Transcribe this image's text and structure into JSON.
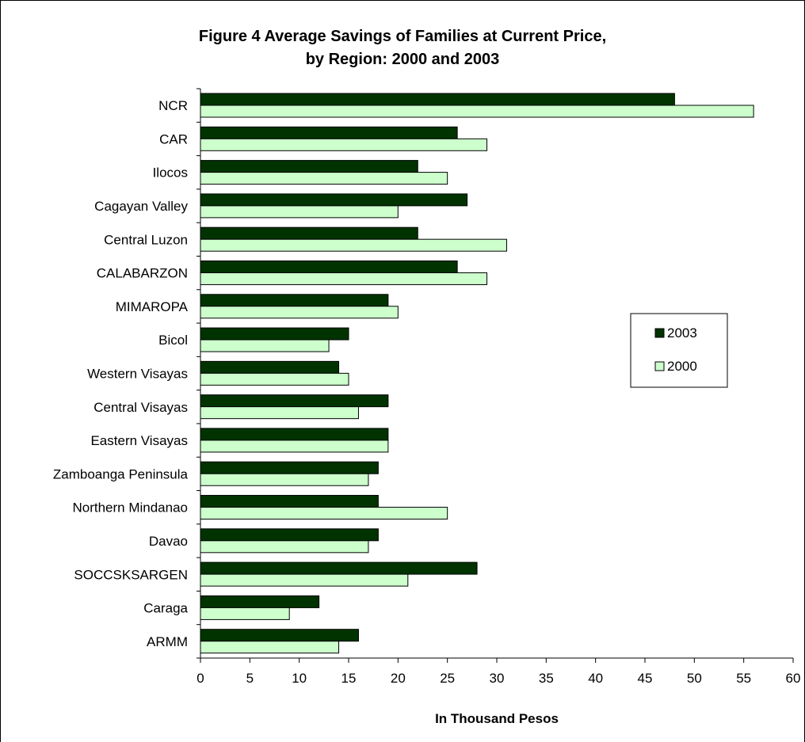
{
  "chart_data": {
    "type": "bar",
    "orientation": "horizontal",
    "title": "Figure 4  Average Savings of Families at Current Price,",
    "subtitle": "by Region:  2000 and 2003",
    "xlabel": "In Thousand Pesos",
    "ylabel": "",
    "xlim": [
      0,
      60
    ],
    "x_ticks": [
      "0",
      "5",
      "10",
      "15",
      "20",
      "25",
      "30",
      "35",
      "40",
      "45",
      "50",
      "55",
      "60"
    ],
    "grid": false,
    "legend_position": "right",
    "categories": [
      "NCR",
      "CAR",
      "Ilocos",
      "Cagayan Valley",
      "Central Luzon",
      "CALABARZON",
      "MIMAROPA",
      "Bicol",
      "Western Visayas",
      "Central Visayas",
      "Eastern Visayas",
      "Zamboanga Peninsula",
      "Northern Mindanao",
      "Davao",
      "SOCCSKSARGEN",
      "Caraga",
      "ARMM"
    ],
    "series": [
      {
        "name": "2003",
        "color": "#003300",
        "values": [
          48,
          26,
          22,
          27,
          22,
          26,
          19,
          15,
          14,
          19,
          19,
          18,
          18,
          18,
          28,
          12,
          16
        ]
      },
      {
        "name": "2000",
        "color": "#ccffcc",
        "values": [
          56,
          29,
          25,
          20,
          31,
          29,
          20,
          13,
          15,
          16,
          19,
          17,
          25,
          17,
          21,
          9,
          14
        ]
      }
    ]
  }
}
